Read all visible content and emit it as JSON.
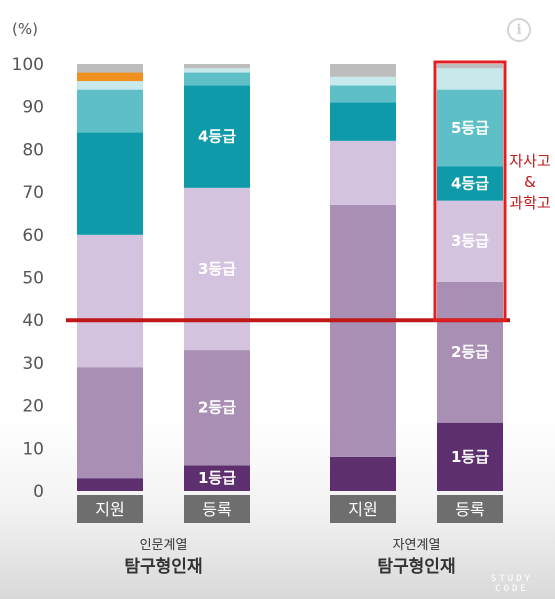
{
  "chart_data": {
    "type": "bar",
    "stacked": true,
    "unit_label": "(%)",
    "y_ticks": [
      "0",
      "10",
      "20",
      "30",
      "40",
      "50",
      "60",
      "70",
      "80",
      "90",
      "100"
    ],
    "ylim": [
      0,
      100
    ],
    "grid": false,
    "bars": [
      {
        "category": "지원",
        "segments": [
          {
            "from": 0,
            "to": 3,
            "color": "#5d2f6e",
            "label": ""
          },
          {
            "from": 3,
            "to": 29,
            "color": "#a98fb4",
            "label": ""
          },
          {
            "from": 29,
            "to": 60,
            "color": "#d3c3de",
            "label": ""
          },
          {
            "from": 60,
            "to": 84,
            "color": "#0e9aa9",
            "label": ""
          },
          {
            "from": 84,
            "to": 94,
            "color": "#5fbfc7",
            "label": ""
          },
          {
            "from": 94,
            "to": 96,
            "color": "#c8e9ec",
            "label": ""
          },
          {
            "from": 96,
            "to": 98,
            "color": "#f0901e",
            "label": ""
          },
          {
            "from": 98,
            "to": 100,
            "color": "#bdbdbd",
            "label": ""
          }
        ]
      },
      {
        "category": "등록",
        "segments": [
          {
            "from": 0,
            "to": 6,
            "color": "#5d2f6e",
            "label": "1등급"
          },
          {
            "from": 6,
            "to": 33,
            "color": "#a98fb4",
            "label": "2등급"
          },
          {
            "from": 33,
            "to": 71,
            "color": "#d3c3de",
            "label": "3등급"
          },
          {
            "from": 71,
            "to": 95,
            "color": "#0e9aa9",
            "label": "4등급"
          },
          {
            "from": 95,
            "to": 98,
            "color": "#5fbfc7",
            "label": ""
          },
          {
            "from": 98,
            "to": 99,
            "color": "#c8e9ec",
            "label": ""
          },
          {
            "from": 99,
            "to": 100,
            "color": "#bdbdbd",
            "label": ""
          }
        ]
      },
      {
        "category": "지원",
        "segments": [
          {
            "from": 0,
            "to": 8,
            "color": "#5d2f6e",
            "label": ""
          },
          {
            "from": 8,
            "to": 67,
            "color": "#a98fb4",
            "label": ""
          },
          {
            "from": 67,
            "to": 82,
            "color": "#d3c3de",
            "label": ""
          },
          {
            "from": 82,
            "to": 91,
            "color": "#0e9aa9",
            "label": ""
          },
          {
            "from": 91,
            "to": 95,
            "color": "#5fbfc7",
            "label": ""
          },
          {
            "from": 95,
            "to": 97,
            "color": "#c8e9ec",
            "label": ""
          },
          {
            "from": 97,
            "to": 100,
            "color": "#bdbdbd",
            "label": ""
          }
        ]
      },
      {
        "category": "등록",
        "segments": [
          {
            "from": 0,
            "to": 16,
            "color": "#5d2f6e",
            "label": "1등급"
          },
          {
            "from": 16,
            "to": 49,
            "color": "#a98fb4",
            "label": "2등급"
          },
          {
            "from": 49,
            "to": 68,
            "color": "#d3c3de",
            "label": "3등급"
          },
          {
            "from": 68,
            "to": 76,
            "color": "#0e9aa9",
            "label": "4등급"
          },
          {
            "from": 76,
            "to": 94,
            "color": "#5fbfc7",
            "label": "5등급"
          },
          {
            "from": 94,
            "to": 99,
            "color": "#c8e9ec",
            "label": ""
          },
          {
            "from": 99,
            "to": 100,
            "color": "#bdbdbd",
            "label": ""
          }
        ]
      }
    ],
    "groups": [
      {
        "sublabel": "인문계열",
        "label": "탐구형인재",
        "bars": [
          0,
          1
        ]
      },
      {
        "sublabel": "자연계열",
        "label": "탐구형인재",
        "bars": [
          2,
          3
        ]
      }
    ],
    "reference_line": {
      "value": 40,
      "color": "#c01818"
    },
    "highlight": {
      "bar": 3,
      "from": 40,
      "to": 100,
      "color": "#e02020",
      "annotation": [
        "자사고",
        "&",
        "과학고"
      ]
    },
    "category_box_color": "#6e6e6e"
  },
  "overlay": {
    "info_icon": "info-icon",
    "info_glyph": "i",
    "watermark_top": "STUDY",
    "watermark_bottom": "CODE"
  }
}
